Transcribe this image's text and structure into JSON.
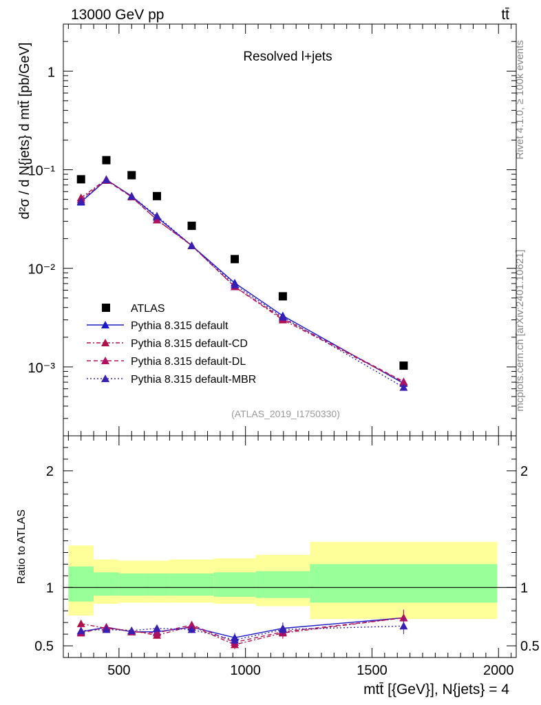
{
  "header": {
    "energy_label": "13000 GeV pp",
    "process_label": "tt̄"
  },
  "side_labels": {
    "rivet": "Rivet 4.1.0, ≥ 100k events",
    "mcplots": "mcplots.cern.ch [arXiv:2401.10621]"
  },
  "colors": {
    "atlas": "#000000",
    "default": "#1a1ac8",
    "cd": "#b0104a",
    "dl": "#b01060",
    "mbr": "#3a20b0",
    "band_inner": "#99ff99",
    "band_outer": "#ffff99"
  },
  "chart_data": [
    {
      "type": "line",
      "title": "Resolved l+jets",
      "analysis_tag": "(ATLAS_2019_I1750330)",
      "ylabel": "d²σ / d N{jets} d mtt̄ [pb/GeV]",
      "yscale": "log",
      "ylim": [
        0.0002,
        3
      ],
      "xlim": [
        280,
        2070
      ],
      "y_tick_labels": [
        "10⁻³",
        "10⁻²",
        "10⁻¹",
        "1"
      ],
      "x": [
        350,
        450,
        550,
        650,
        787.5,
        957.5,
        1147.5,
        1625
      ],
      "bin_edges": [
        300,
        400,
        500,
        600,
        700,
        875,
        1040,
        1255,
        1995
      ],
      "series": [
        {
          "name": "ATLAS",
          "marker": "square",
          "values": [
            0.08,
            0.125,
            0.088,
            0.054,
            0.027,
            0.0124,
            0.0052,
            0.00103
          ]
        },
        {
          "name": "Pythia 8.315 default",
          "style": "solid",
          "values": [
            0.047,
            0.079,
            0.054,
            0.033,
            0.017,
            0.0071,
            0.0033,
            0.00068
          ]
        },
        {
          "name": "Pythia 8.315 default-CD",
          "style": "dashdot",
          "values": [
            0.052,
            0.08,
            0.053,
            0.031,
            0.017,
            0.0065,
            0.003,
            0.0007
          ]
        },
        {
          "name": "Pythia 8.315 default-DL",
          "style": "dashed",
          "values": [
            0.05,
            0.078,
            0.053,
            0.031,
            0.017,
            0.0065,
            0.0031,
            0.00071
          ]
        },
        {
          "name": "Pythia 8.315 default-MBR",
          "style": "dotted",
          "values": [
            0.048,
            0.079,
            0.054,
            0.034,
            0.017,
            0.0068,
            0.0032,
            0.00062
          ]
        }
      ]
    },
    {
      "type": "line",
      "ylabel": "Ratio to ATLAS",
      "xlabel": "mtt̄ [{GeV}], N{jets} = 4",
      "ylim": [
        0.4,
        2.3
      ],
      "xlim": [
        280,
        2070
      ],
      "y_tick_labels": [
        "0.5",
        "1",
        "2"
      ],
      "x_tick_labels": [
        "500",
        "1000",
        "1500",
        "2000"
      ],
      "x": [
        350,
        450,
        550,
        650,
        787.5,
        957.5,
        1147.5,
        1625
      ],
      "bands": {
        "bin_edges": [
          300,
          400,
          500,
          600,
          700,
          875,
          1040,
          1255,
          1995
        ],
        "outer_low": [
          0.76,
          0.86,
          0.87,
          0.87,
          0.87,
          0.86,
          0.84,
          0.73
        ],
        "outer_high": [
          1.36,
          1.24,
          1.23,
          1.23,
          1.24,
          1.25,
          1.28,
          1.39
        ],
        "inner_low": [
          0.88,
          0.93,
          0.93,
          0.93,
          0.93,
          0.92,
          0.91,
          0.87
        ],
        "inner_high": [
          1.18,
          1.13,
          1.12,
          1.12,
          1.12,
          1.13,
          1.14,
          1.2
        ]
      },
      "series": [
        {
          "name": "Pythia 8.315 default",
          "values": [
            0.62,
            0.66,
            0.62,
            0.62,
            0.66,
            0.57,
            0.65,
            0.74
          ],
          "errors": [
            0.02,
            0.02,
            0.02,
            0.03,
            0.03,
            0.04,
            0.05,
            0.07
          ]
        },
        {
          "name": "Pythia 8.315 default-CD",
          "values": [
            0.69,
            0.65,
            0.63,
            0.59,
            0.67,
            0.51,
            0.61,
            0.74
          ],
          "errors": [
            0.02,
            0.02,
            0.02,
            0.03,
            0.03,
            0.04,
            0.05,
            0.07
          ]
        },
        {
          "name": "Pythia 8.315 default-DL",
          "values": [
            0.61,
            0.66,
            0.62,
            0.61,
            0.68,
            0.53,
            0.62,
            0.74
          ],
          "errors": [
            0.02,
            0.02,
            0.02,
            0.03,
            0.03,
            0.04,
            0.05,
            0.07
          ]
        },
        {
          "name": "Pythia 8.315 default-MBR",
          "values": [
            0.63,
            0.64,
            0.63,
            0.65,
            0.64,
            0.55,
            0.64,
            0.67
          ],
          "errors": [
            0.02,
            0.02,
            0.02,
            0.03,
            0.03,
            0.04,
            0.05,
            0.07
          ]
        }
      ]
    }
  ]
}
